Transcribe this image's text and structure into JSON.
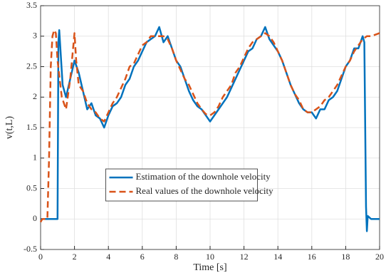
{
  "chart_data": {
    "type": "line",
    "xlabel": "Time [s]",
    "ylabel": "v(t,L)",
    "xlim": [
      0,
      20
    ],
    "ylim": [
      -0.5,
      3.5
    ],
    "xticks": [
      0,
      2,
      4,
      6,
      8,
      10,
      12,
      14,
      16,
      18,
      20
    ],
    "yticks": [
      -0.5,
      0,
      0.5,
      1,
      1.5,
      2,
      2.5,
      3,
      3.5
    ],
    "grid": true,
    "legend": "south",
    "series": [
      {
        "name": "Estimation of the downhole velocity",
        "color": "#0072bd",
        "dash": "solid",
        "x": [
          0,
          0.9,
          1.0,
          1.05,
          1.1,
          1.3,
          1.5,
          1.75,
          2.0,
          2.25,
          2.5,
          2.75,
          3.0,
          3.25,
          3.5,
          3.75,
          4.0,
          4.25,
          4.5,
          4.75,
          5.0,
          5.25,
          5.5,
          5.75,
          6.0,
          6.25,
          6.5,
          6.75,
          7.0,
          7.25,
          7.5,
          7.75,
          8.0,
          8.25,
          8.5,
          8.75,
          9.0,
          9.25,
          9.5,
          9.75,
          10.0,
          10.25,
          10.5,
          10.75,
          11.0,
          11.25,
          11.5,
          11.75,
          12.0,
          12.25,
          12.5,
          12.75,
          13.0,
          13.25,
          13.5,
          13.75,
          14.0,
          14.25,
          14.5,
          14.75,
          15.0,
          15.25,
          15.5,
          15.75,
          16.0,
          16.25,
          16.5,
          16.75,
          17.0,
          17.25,
          17.5,
          17.75,
          18.0,
          18.25,
          18.5,
          18.75,
          19.0,
          19.1,
          19.2,
          19.25,
          19.3,
          19.5,
          20
        ],
        "values": [
          0,
          0,
          0,
          2.9,
          3.1,
          2.2,
          2.0,
          2.3,
          2.6,
          2.4,
          2.1,
          1.8,
          1.9,
          1.7,
          1.65,
          1.5,
          1.7,
          1.85,
          1.9,
          2.0,
          2.2,
          2.3,
          2.5,
          2.6,
          2.75,
          2.9,
          2.95,
          3.0,
          3.15,
          2.9,
          3.0,
          2.8,
          2.6,
          2.5,
          2.3,
          2.1,
          1.95,
          1.85,
          1.8,
          1.7,
          1.6,
          1.7,
          1.8,
          1.9,
          2.0,
          2.15,
          2.3,
          2.45,
          2.6,
          2.75,
          2.8,
          2.95,
          3.0,
          3.15,
          2.95,
          2.85,
          2.75,
          2.6,
          2.4,
          2.2,
          2.05,
          1.9,
          1.8,
          1.75,
          1.75,
          1.65,
          1.8,
          1.8,
          1.95,
          2.0,
          2.1,
          2.3,
          2.5,
          2.6,
          2.8,
          2.8,
          3.0,
          2.9,
          0.2,
          -0.2,
          0.05,
          0,
          0
        ]
      },
      {
        "name": "Real values of the downhole velocity",
        "color": "#d95319",
        "dash": "dashed",
        "x": [
          0,
          0.1,
          0.4,
          0.5,
          0.6,
          0.7,
          0.8,
          0.9,
          1.0,
          1.25,
          1.5,
          1.75,
          2.0,
          2.1,
          2.25,
          2.5,
          2.75,
          3.0,
          3.25,
          3.5,
          3.75,
          4.0,
          4.25,
          4.5,
          4.75,
          5.0,
          5.25,
          5.5,
          5.75,
          6.0,
          6.25,
          6.5,
          6.75,
          7.0,
          7.25,
          7.5,
          7.75,
          8.0,
          8.25,
          8.5,
          8.75,
          9.0,
          9.25,
          9.5,
          9.75,
          10.0,
          10.25,
          10.5,
          10.75,
          11.0,
          11.25,
          11.5,
          11.75,
          12.0,
          12.25,
          12.5,
          12.75,
          13.0,
          13.25,
          13.5,
          13.75,
          14.0,
          14.25,
          14.5,
          14.75,
          15.0,
          15.25,
          15.5,
          15.75,
          16.0,
          16.25,
          16.5,
          16.75,
          17.0,
          17.25,
          17.5,
          17.75,
          18.0,
          18.25,
          18.5,
          18.75,
          19.0,
          19.25,
          19.5,
          20
        ],
        "values": [
          -0.05,
          0,
          0,
          1.0,
          2.5,
          3.0,
          3.1,
          3.05,
          2.6,
          2.0,
          1.8,
          2.3,
          3.05,
          2.6,
          2.2,
          2.1,
          1.9,
          1.8,
          1.75,
          1.65,
          1.6,
          1.75,
          1.9,
          2.0,
          2.15,
          2.3,
          2.5,
          2.55,
          2.7,
          2.85,
          2.9,
          3.0,
          3.0,
          3.0,
          3.0,
          2.95,
          2.8,
          2.6,
          2.45,
          2.3,
          2.2,
          2.05,
          1.9,
          1.8,
          1.72,
          1.7,
          1.75,
          1.85,
          2.0,
          2.1,
          2.2,
          2.4,
          2.5,
          2.65,
          2.8,
          2.9,
          2.95,
          3.0,
          3.05,
          3.0,
          2.9,
          2.75,
          2.6,
          2.4,
          2.2,
          2.05,
          1.95,
          1.8,
          1.75,
          1.75,
          1.8,
          1.85,
          1.95,
          2.0,
          2.1,
          2.2,
          2.35,
          2.5,
          2.6,
          2.75,
          2.85,
          2.95,
          3.0,
          3.0,
          3.05
        ]
      }
    ]
  }
}
